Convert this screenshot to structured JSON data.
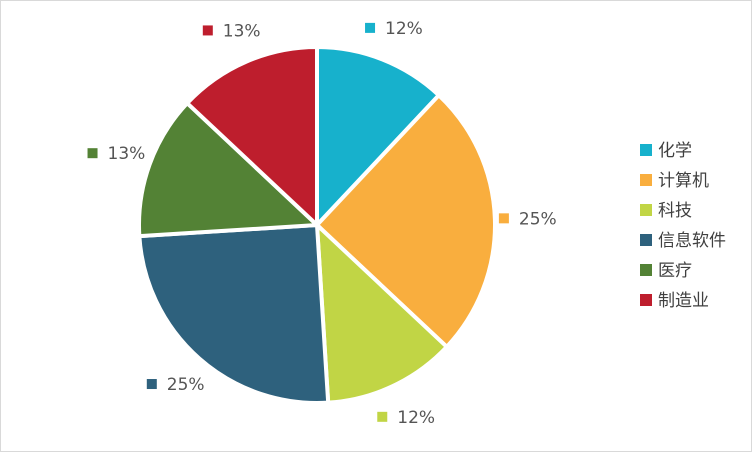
{
  "chart_data": {
    "type": "pie",
    "categories": [
      "化学",
      "计算机",
      "科技",
      "信息软件",
      "医疗",
      "制造业"
    ],
    "values": [
      12,
      25,
      12,
      25,
      13,
      13
    ],
    "value_labels": [
      "12%",
      "25%",
      "12%",
      "25%",
      "13%",
      "13%"
    ],
    "colors": [
      "#17b1cc",
      "#f9ae3e",
      "#c1d545",
      "#2e617d",
      "#538235",
      "#be1e2d"
    ],
    "legend": "right"
  }
}
